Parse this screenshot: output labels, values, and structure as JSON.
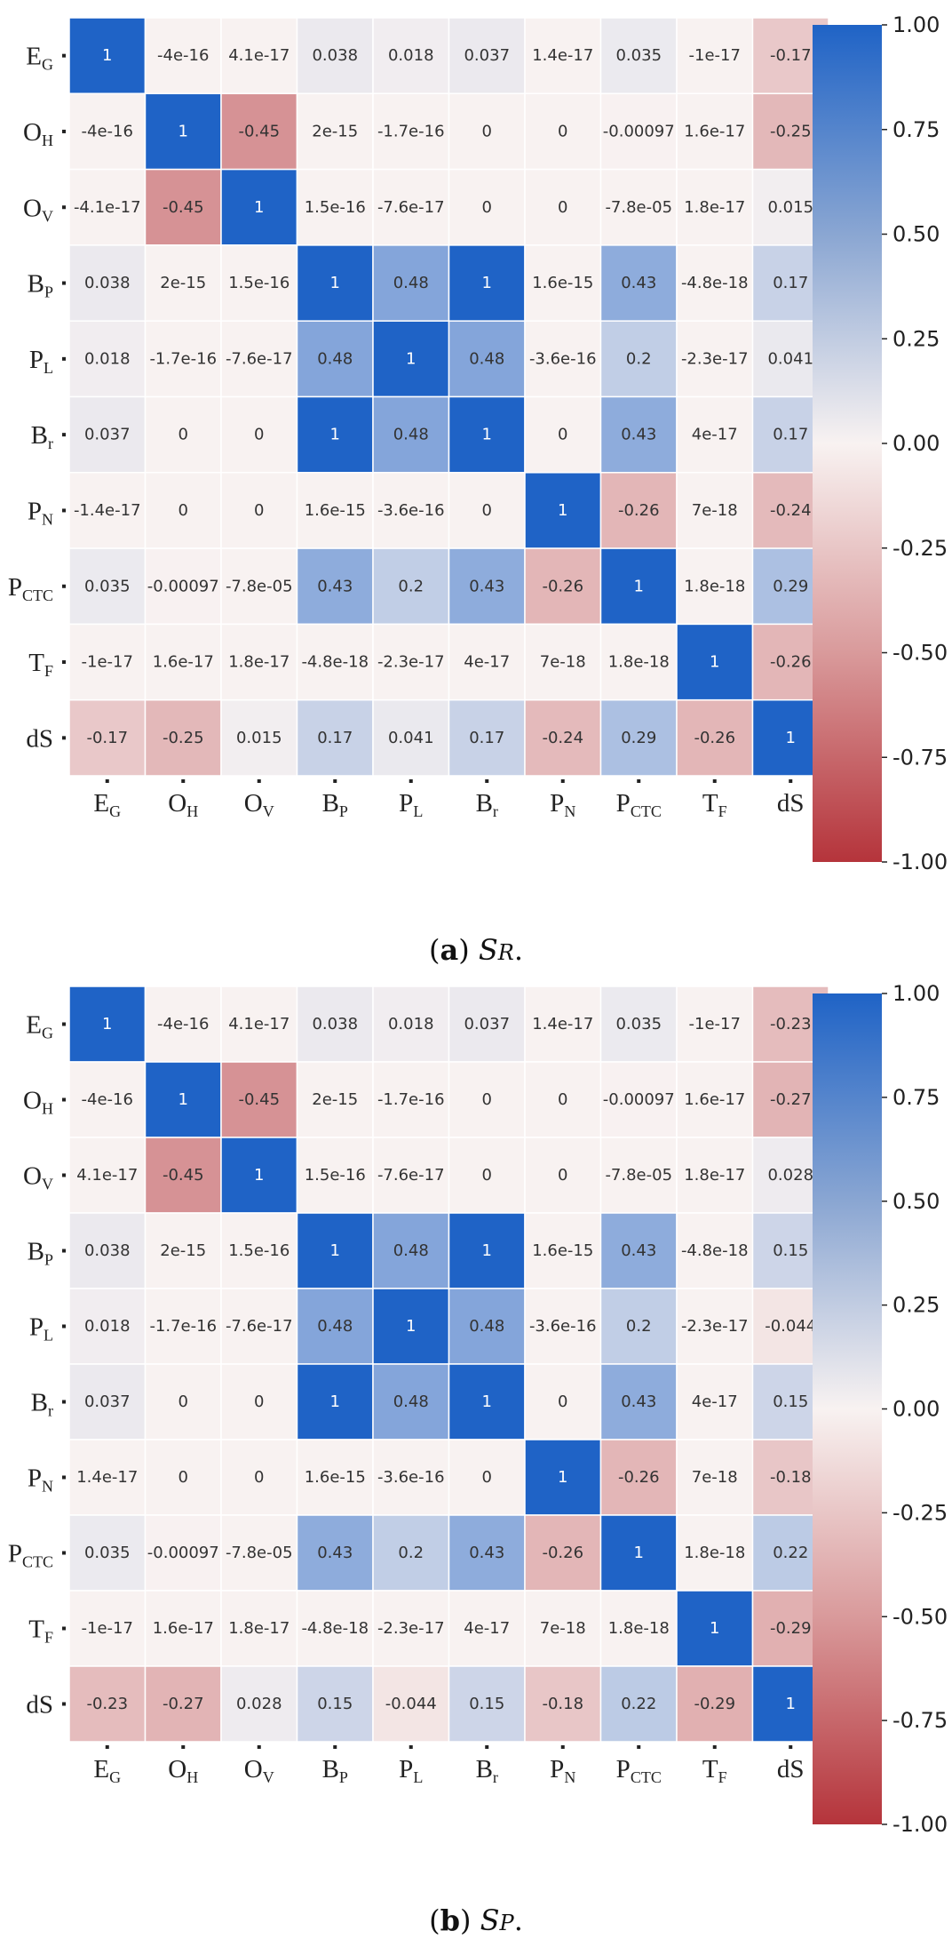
{
  "figure": {
    "captions": [
      {
        "letter": "a",
        "symbol": "S",
        "subscript": "R",
        "trail": "."
      },
      {
        "letter": "b",
        "symbol": "S",
        "subscript": "P",
        "trail": "."
      }
    ]
  },
  "chart_data": [
    {
      "type": "heatmap",
      "title": "(a) SR.",
      "xlabel": "",
      "ylabel": "",
      "labels": [
        {
          "main": "E",
          "sub": "G"
        },
        {
          "main": "O",
          "sub": "H"
        },
        {
          "main": "O",
          "sub": "V"
        },
        {
          "main": "B",
          "sub": "P"
        },
        {
          "main": "P",
          "sub": "L"
        },
        {
          "main": "B",
          "sub": "r"
        },
        {
          "main": "P",
          "sub": "N"
        },
        {
          "main": "P",
          "sub": "CTC"
        },
        {
          "main": "T",
          "sub": "F"
        },
        {
          "main": "dS",
          "sub": ""
        }
      ],
      "values": [
        [
          1,
          -4e-16,
          4.1e-17,
          0.038,
          0.018,
          0.037,
          1.4e-17,
          0.035,
          -1e-17,
          -0.17
        ],
        [
          -4e-16,
          1,
          -0.45,
          2e-15,
          -1.7e-16,
          0,
          0,
          -0.00097,
          1.6e-17,
          -0.25
        ],
        [
          -4.1e-17,
          -0.45,
          1,
          1.5e-16,
          -7.6e-17,
          0,
          0,
          -7.8e-05,
          1.8e-17,
          0.015
        ],
        [
          0.038,
          2e-15,
          1.5e-16,
          1,
          0.48,
          1,
          1.6e-15,
          0.43,
          -4.8e-18,
          0.17
        ],
        [
          0.018,
          -1.7e-16,
          -7.6e-17,
          0.48,
          1,
          0.48,
          -3.6e-16,
          0.2,
          -2.3e-17,
          0.041
        ],
        [
          0.037,
          0,
          0,
          1,
          0.48,
          1,
          0,
          0.43,
          4e-17,
          0.17
        ],
        [
          -1.4e-17,
          0,
          0,
          1.6e-15,
          -3.6e-16,
          0,
          1,
          -0.26,
          7e-18,
          -0.24
        ],
        [
          0.035,
          -0.00097,
          -7.8e-05,
          0.43,
          0.2,
          0.43,
          -0.26,
          1,
          1.8e-18,
          0.29
        ],
        [
          -1e-17,
          1.6e-17,
          1.8e-17,
          -4.8e-18,
          -2.3e-17,
          4e-17,
          7e-18,
          1.8e-18,
          1,
          -0.26
        ],
        [
          -0.17,
          -0.25,
          0.015,
          0.17,
          0.041,
          0.17,
          -0.24,
          0.29,
          -0.26,
          1
        ]
      ],
      "cell_labels": [
        [
          "1",
          "-4e-16",
          "4.1e-17",
          "0.038",
          "0.018",
          "0.037",
          "1.4e-17",
          "0.035",
          "-1e-17",
          "-0.17"
        ],
        [
          "-4e-16",
          "1",
          "-0.45",
          "2e-15",
          "-1.7e-16",
          "0",
          "0",
          "-0.00097",
          "1.6e-17",
          "-0.25"
        ],
        [
          "-4.1e-17",
          "-0.45",
          "1",
          "1.5e-16",
          "-7.6e-17",
          "0",
          "0",
          "-7.8e-05",
          "1.8e-17",
          "0.015"
        ],
        [
          "0.038",
          "2e-15",
          "1.5e-16",
          "1",
          "0.48",
          "1",
          "1.6e-15",
          "0.43",
          "-4.8e-18",
          "0.17"
        ],
        [
          "0.018",
          "-1.7e-16",
          "-7.6e-17",
          "0.48",
          "1",
          "0.48",
          "-3.6e-16",
          "0.2",
          "-2.3e-17",
          "0.041"
        ],
        [
          "0.037",
          "0",
          "0",
          "1",
          "0.48",
          "1",
          "0",
          "0.43",
          "4e-17",
          "0.17"
        ],
        [
          "-1.4e-17",
          "0",
          "0",
          "1.6e-15",
          "-3.6e-16",
          "0",
          "1",
          "-0.26",
          "7e-18",
          "-0.24"
        ],
        [
          "0.035",
          "-0.00097",
          "-7.8e-05",
          "0.43",
          "0.2",
          "0.43",
          "-0.26",
          "1",
          "1.8e-18",
          "0.29"
        ],
        [
          "-1e-17",
          "1.6e-17",
          "1.8e-17",
          "-4.8e-18",
          "-2.3e-17",
          "4e-17",
          "7e-18",
          "1.8e-18",
          "1",
          "-0.26"
        ],
        [
          "-0.17",
          "-0.25",
          "0.015",
          "0.17",
          "0.041",
          "0.17",
          "-0.24",
          "0.29",
          "-0.26",
          "1"
        ]
      ],
      "colorbar": {
        "range": [
          -1,
          1
        ],
        "ticks": [
          "1.00",
          "0.75",
          "0.50",
          "0.25",
          "0.00",
          "-0.25",
          "-0.50",
          "-0.75",
          "-1.00"
        ],
        "tick_values": [
          1,
          0.75,
          0.5,
          0.25,
          0,
          -0.25,
          -0.5,
          -0.75,
          -1
        ]
      },
      "grid": false
    },
    {
      "type": "heatmap",
      "title": "(b) SP.",
      "xlabel": "",
      "ylabel": "",
      "labels": [
        {
          "main": "E",
          "sub": "G"
        },
        {
          "main": "O",
          "sub": "H"
        },
        {
          "main": "O",
          "sub": "V"
        },
        {
          "main": "B",
          "sub": "P"
        },
        {
          "main": "P",
          "sub": "L"
        },
        {
          "main": "B",
          "sub": "r"
        },
        {
          "main": "P",
          "sub": "N"
        },
        {
          "main": "P",
          "sub": "CTC"
        },
        {
          "main": "T",
          "sub": "F"
        },
        {
          "main": "dS",
          "sub": ""
        }
      ],
      "values": [
        [
          1,
          -4e-16,
          4.1e-17,
          0.038,
          0.018,
          0.037,
          1.4e-17,
          0.035,
          -1e-17,
          -0.23
        ],
        [
          -4e-16,
          1,
          -0.45,
          2e-15,
          -1.7e-16,
          0,
          0,
          -0.00097,
          1.6e-17,
          -0.27
        ],
        [
          4.1e-17,
          -0.45,
          1,
          1.5e-16,
          -7.6e-17,
          0,
          0,
          -7.8e-05,
          1.8e-17,
          0.028
        ],
        [
          0.038,
          2e-15,
          1.5e-16,
          1,
          0.48,
          1,
          1.6e-15,
          0.43,
          -4.8e-18,
          0.15
        ],
        [
          0.018,
          -1.7e-16,
          -7.6e-17,
          0.48,
          1,
          0.48,
          -3.6e-16,
          0.2,
          -2.3e-17,
          -0.044
        ],
        [
          0.037,
          0,
          0,
          1,
          0.48,
          1,
          0,
          0.43,
          4e-17,
          0.15
        ],
        [
          1.4e-17,
          0,
          0,
          1.6e-15,
          -3.6e-16,
          0,
          1,
          -0.26,
          7e-18,
          -0.18
        ],
        [
          0.035,
          -0.00097,
          -7.8e-05,
          0.43,
          0.2,
          0.43,
          -0.26,
          1,
          1.8e-18,
          0.22
        ],
        [
          -1e-17,
          1.6e-17,
          1.8e-17,
          -4.8e-18,
          -2.3e-17,
          4e-17,
          7e-18,
          1.8e-18,
          1,
          -0.29
        ],
        [
          -0.23,
          -0.27,
          0.028,
          0.15,
          -0.044,
          0.15,
          -0.18,
          0.22,
          -0.29,
          1
        ]
      ],
      "cell_labels": [
        [
          "1",
          "-4e-16",
          "4.1e-17",
          "0.038",
          "0.018",
          "0.037",
          "1.4e-17",
          "0.035",
          "-1e-17",
          "-0.23"
        ],
        [
          "-4e-16",
          "1",
          "-0.45",
          "2e-15",
          "-1.7e-16",
          "0",
          "0",
          "-0.00097",
          "1.6e-17",
          "-0.27"
        ],
        [
          "4.1e-17",
          "-0.45",
          "1",
          "1.5e-16",
          "-7.6e-17",
          "0",
          "0",
          "-7.8e-05",
          "1.8e-17",
          "0.028"
        ],
        [
          "0.038",
          "2e-15",
          "1.5e-16",
          "1",
          "0.48",
          "1",
          "1.6e-15",
          "0.43",
          "-4.8e-18",
          "0.15"
        ],
        [
          "0.018",
          "-1.7e-16",
          "-7.6e-17",
          "0.48",
          "1",
          "0.48",
          "-3.6e-16",
          "0.2",
          "-2.3e-17",
          "-0.044"
        ],
        [
          "0.037",
          "0",
          "0",
          "1",
          "0.48",
          "1",
          "0",
          "0.43",
          "4e-17",
          "0.15"
        ],
        [
          "1.4e-17",
          "0",
          "0",
          "1.6e-15",
          "-3.6e-16",
          "0",
          "1",
          "-0.26",
          "7e-18",
          "-0.18"
        ],
        [
          "0.035",
          "-0.00097",
          "-7.8e-05",
          "0.43",
          "0.2",
          "0.43",
          "-0.26",
          "1",
          "1.8e-18",
          "0.22"
        ],
        [
          "-1e-17",
          "1.6e-17",
          "1.8e-17",
          "-4.8e-18",
          "-2.3e-17",
          "4e-17",
          "7e-18",
          "1.8e-18",
          "1",
          "-0.29"
        ],
        [
          "-0.23",
          "-0.27",
          "0.028",
          "0.15",
          "-0.044",
          "0.15",
          "-0.18",
          "0.22",
          "-0.29",
          "1"
        ]
      ],
      "colorbar": {
        "range": [
          -1,
          1
        ],
        "ticks": [
          "1.00",
          "0.75",
          "0.50",
          "0.25",
          "0.00",
          "-0.25",
          "-0.50",
          "-0.75",
          "-1.00"
        ],
        "tick_values": [
          1,
          0.75,
          0.5,
          0.25,
          0,
          -0.25,
          -0.5,
          -0.75,
          -1
        ]
      },
      "grid": false
    }
  ],
  "colors": {
    "positive": "#1f63c6",
    "neutral": "#f8f2f1",
    "negative": "#b5343b",
    "cell_border": "#ffffff"
  }
}
